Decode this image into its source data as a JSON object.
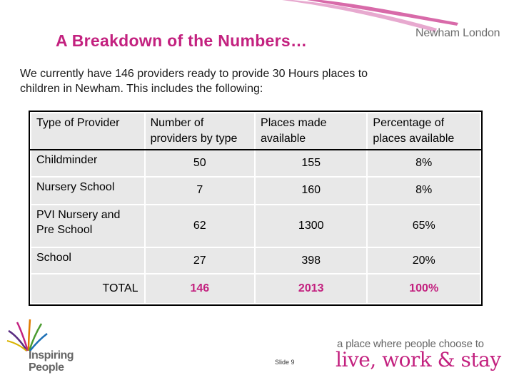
{
  "slide": {
    "title": "A Breakdown of the Numbers…",
    "intro": "We currently have 146 providers ready to provide 30 Hours places to children in Newham. This includes the following:",
    "slide_number": "Slide 9"
  },
  "logos": {
    "newham": "Newham London",
    "inspiring_line1": "Inspiring",
    "inspiring_line2": "People",
    "tagline_small": "a place where people choose to",
    "tagline_big": "live, work & stay"
  },
  "table": {
    "headers": [
      "Type of Provider",
      "Number of providers by type",
      "Places made available",
      "Percentage of places available"
    ],
    "rows": [
      {
        "type": "Childminder",
        "providers": "50",
        "places": "155",
        "percentage": "8%"
      },
      {
        "type": "Nursery School",
        "providers": "7",
        "places": "160",
        "percentage": "8%"
      },
      {
        "type": "PVI Nursery and Pre School",
        "providers": "62",
        "places": "1300",
        "percentage": "65%"
      },
      {
        "type": "School",
        "providers": "27",
        "places": "398",
        "percentage": "20%"
      }
    ],
    "total": {
      "label": "TOTAL",
      "providers": "146",
      "places": "2013",
      "percentage": "100%"
    }
  },
  "colors": {
    "accent": "#c3217f",
    "table_bg": "#e8e8e8",
    "logo_grey": "#6d6d6d"
  }
}
